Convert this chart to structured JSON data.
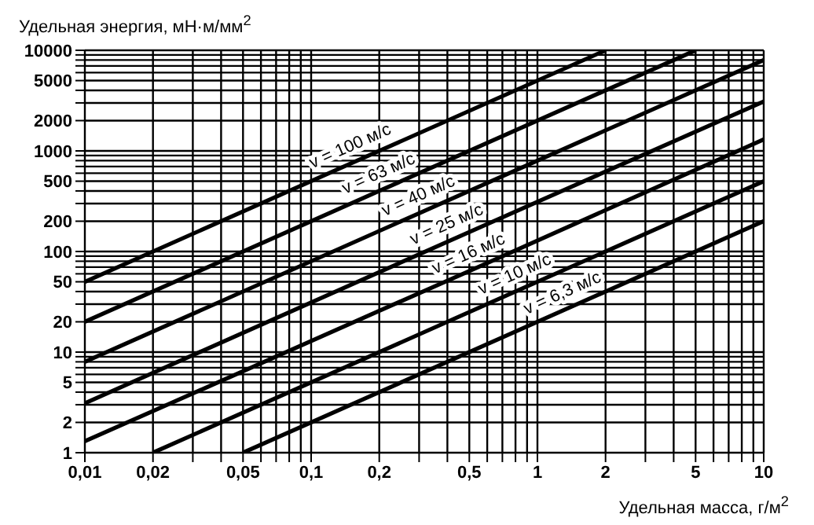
{
  "chart_data": {
    "type": "line",
    "xlabel": "Удельная масса, г/м$^{2}$",
    "ylabel": "Удельная энергия, мН·м/мм$^{2}$",
    "log": "xy",
    "grid": true,
    "legend": false,
    "marker": "none",
    "line_style": "solid",
    "xlim": [
      0.01,
      10
    ],
    "ylim": [
      1,
      10000
    ],
    "xticks": [
      {
        "value": 0.01,
        "label": "0,01"
      },
      {
        "value": 0.02,
        "label": "0,02"
      },
      {
        "value": 0.03,
        "label": null
      },
      {
        "value": 0.04,
        "label": null
      },
      {
        "value": 0.05,
        "label": "0,05"
      },
      {
        "value": 0.06,
        "label": null
      },
      {
        "value": 0.07,
        "label": null
      },
      {
        "value": 0.08,
        "label": null
      },
      {
        "value": 0.09,
        "label": null
      },
      {
        "value": 0.1,
        "label": "0,1"
      },
      {
        "value": 0.2,
        "label": "0,2"
      },
      {
        "value": 0.3,
        "label": null
      },
      {
        "value": 0.4,
        "label": null
      },
      {
        "value": 0.5,
        "label": "0,5"
      },
      {
        "value": 0.6,
        "label": null
      },
      {
        "value": 0.7,
        "label": null
      },
      {
        "value": 0.8,
        "label": null
      },
      {
        "value": 0.9,
        "label": null
      },
      {
        "value": 1,
        "label": "1"
      },
      {
        "value": 2,
        "label": "2"
      },
      {
        "value": 3,
        "label": null
      },
      {
        "value": 4,
        "label": null
      },
      {
        "value": 5,
        "label": "5"
      },
      {
        "value": 6,
        "label": null
      },
      {
        "value": 7,
        "label": null
      },
      {
        "value": 8,
        "label": null
      },
      {
        "value": 9,
        "label": null
      },
      {
        "value": 10,
        "label": "10"
      }
    ],
    "yticks": [
      1,
      2,
      {
        "value": 3,
        "label": null
      },
      {
        "value": 4,
        "label": null
      },
      5,
      {
        "value": 6,
        "label": null
      },
      {
        "value": 7,
        "label": null
      },
      {
        "value": 8,
        "label": null
      },
      {
        "value": 9,
        "label": null
      },
      10,
      20,
      {
        "value": 30,
        "label": null
      },
      {
        "value": 40,
        "label": null
      },
      50,
      {
        "value": 60,
        "label": null
      },
      {
        "value": 70,
        "label": null
      },
      {
        "value": 80,
        "label": null
      },
      {
        "value": 90,
        "label": null
      },
      100,
      200,
      {
        "value": 300,
        "label": null
      },
      {
        "value": 400,
        "label": null
      },
      500,
      {
        "value": 600,
        "label": null
      },
      {
        "value": 700,
        "label": null
      },
      {
        "value": 800,
        "label": null
      },
      {
        "value": 900,
        "label": null
      },
      1000,
      2000,
      {
        "value": 3000,
        "label": null
      },
      {
        "value": 4000,
        "label": null
      },
      5000,
      {
        "value": 6000,
        "label": null
      },
      {
        "value": 7000,
        "label": null
      },
      {
        "value": 8000,
        "label": null
      },
      {
        "value": 9000,
        "label": null
      },
      10000
    ],
    "series": [
      {
        "name": "v = 100 м/с",
        "color": "#000000",
        "x": [
          0.01,
          0.15,
          2
        ],
        "values": [
          50,
          750,
          10000
        ]
      },
      {
        "name": "v = 63 м/с",
        "color": "#000000",
        "x": [
          0.01,
          0.2,
          5
        ],
        "values": [
          20,
          400,
          10000
        ]
      },
      {
        "name": "v = 40 м/с",
        "color": "#000000",
        "x": [
          0.01,
          0.3,
          10
        ],
        "values": [
          8,
          240,
          8000
        ]
      },
      {
        "name": "v = 25 м/с",
        "color": "#000000",
        "x": [
          0.01,
          0.4,
          10
        ],
        "values": [
          3.1,
          125,
          3100
        ]
      },
      {
        "name": "v = 16 м/с",
        "color": "#000000",
        "x": [
          0.01,
          0.5,
          10
        ],
        "values": [
          1.3,
          64,
          1300
        ]
      },
      {
        "name": "v = 10 м/с",
        "color": "#000000",
        "x": [
          0.02,
          0.8,
          10
        ],
        "values": [
          1,
          40,
          500
        ]
      },
      {
        "name": "v = 6,3 м/с",
        "color": "#000000",
        "x": [
          0.05,
          1.3,
          10
        ],
        "values": [
          1,
          26,
          200
        ]
      }
    ]
  }
}
